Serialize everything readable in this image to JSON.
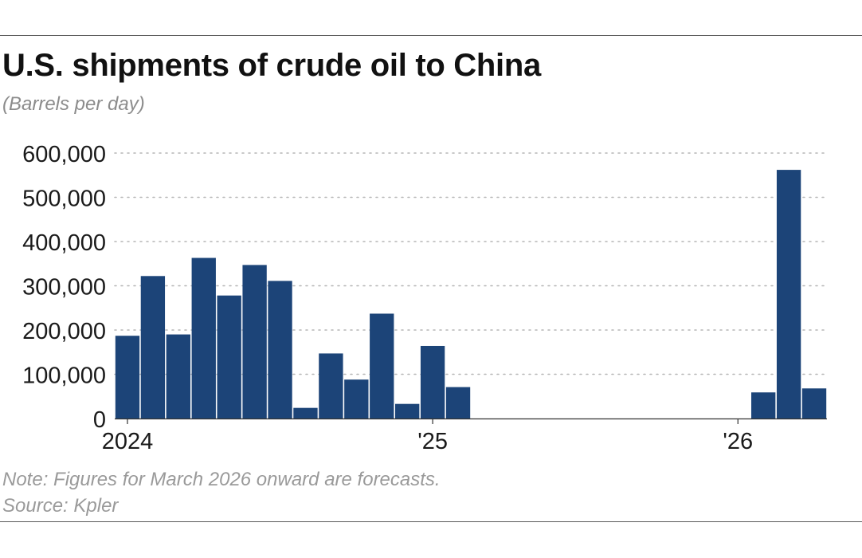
{
  "chart_data": {
    "type": "bar",
    "title": "U.S. shipments of crude oil to China",
    "subtitle": "(Barrels per day)",
    "xlabel": "",
    "ylabel": "",
    "ylim": [
      0,
      600000
    ],
    "y_ticks": [
      {
        "value": 0,
        "label": "0"
      },
      {
        "value": 100000,
        "label": "100,000"
      },
      {
        "value": 200000,
        "label": "200,000"
      },
      {
        "value": 300000,
        "label": "300,000"
      },
      {
        "value": 400000,
        "label": "400,000"
      },
      {
        "value": 500000,
        "label": "500,000"
      },
      {
        "value": 600000,
        "label": "600,000"
      }
    ],
    "x_ticks": [
      {
        "index": 0,
        "label": "2024"
      },
      {
        "index": 12,
        "label": "'25"
      },
      {
        "index": 24,
        "label": "'26"
      }
    ],
    "grid": true,
    "categories": [
      "Jan 2024",
      "Feb 2024",
      "Mar 2024",
      "Apr 2024",
      "May 2024",
      "Jun 2024",
      "Jul 2024",
      "Aug 2024",
      "Sep 2024",
      "Oct 2024",
      "Nov 2024",
      "Dec 2024",
      "Jan 2025",
      "Feb 2025",
      "Mar 2025",
      "Apr 2025",
      "May 2025",
      "Jun 2025",
      "Jul 2025",
      "Aug 2025",
      "Sep 2025",
      "Oct 2025",
      "Nov 2025",
      "Dec 2025",
      "Jan 2026",
      "Feb 2026",
      "Mar 2026",
      "Apr 2026"
    ],
    "values": [
      187000,
      322000,
      190000,
      363000,
      278000,
      347000,
      311000,
      24000,
      147000,
      88000,
      237000,
      33000,
      164000,
      71000,
      0,
      0,
      0,
      0,
      0,
      0,
      0,
      0,
      0,
      0,
      0,
      59000,
      562000,
      68000
    ],
    "bar_color": "#1c4478",
    "note": "Note: Figures for March 2026 onward are forecasts.",
    "source": "Source: Kpler"
  }
}
